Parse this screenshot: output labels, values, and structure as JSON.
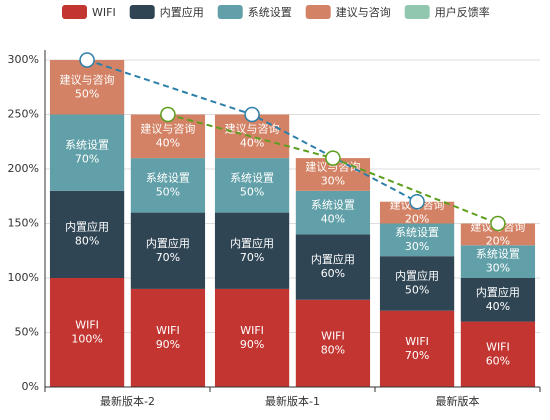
{
  "chart_data": {
    "type": "stacked-bar-line",
    "categories": [
      "最新版本-2",
      "最新版本-1",
      "最新版本"
    ],
    "ylim": [
      0,
      300
    ],
    "yticks": [
      {
        "value": 0,
        "label": "0%"
      },
      {
        "value": 50,
        "label": "50%"
      },
      {
        "value": 100,
        "label": "100%"
      },
      {
        "value": 150,
        "label": "150%"
      },
      {
        "value": 200,
        "label": "200%"
      },
      {
        "value": 250,
        "label": "250%"
      },
      {
        "value": 300,
        "label": "300%"
      }
    ],
    "grid": true,
    "legend_position": "top",
    "series": [
      {
        "name": "WIFI",
        "color": "#c23531",
        "values": [
          [
            100,
            90
          ],
          [
            90,
            80
          ],
          [
            70,
            60
          ]
        ],
        "value_labels": [
          [
            "100%",
            "90%"
          ],
          [
            "90%",
            "80%"
          ],
          [
            "70%",
            "60%"
          ]
        ]
      },
      {
        "name": "内置应用",
        "color": "#2f4554",
        "values": [
          [
            80,
            70
          ],
          [
            70,
            60
          ],
          [
            50,
            40
          ]
        ],
        "value_labels": [
          [
            "80%",
            "70%"
          ],
          [
            "70%",
            "60%"
          ],
          [
            "50%",
            "40%"
          ]
        ]
      },
      {
        "name": "系统设置",
        "color": "#61a0a8",
        "values": [
          [
            70,
            50
          ],
          [
            50,
            40
          ],
          [
            30,
            30
          ]
        ],
        "value_labels": [
          [
            "70%",
            "50%"
          ],
          [
            "50%",
            "40%"
          ],
          [
            "30%",
            "30%"
          ]
        ]
      },
      {
        "name": "建议与咨询",
        "color": "#d48265",
        "values": [
          [
            50,
            40
          ],
          [
            40,
            30
          ],
          [
            20,
            20
          ]
        ],
        "value_labels": [
          [
            "50%",
            "40%"
          ],
          [
            "40%",
            "30%"
          ],
          [
            "20%",
            "20%"
          ]
        ]
      },
      {
        "name": "用户反馈率",
        "color": "#91c7ae",
        "type": "line",
        "lines": [
          {
            "color": "#2c7fa8",
            "values": [
              300,
              250,
              170
            ]
          },
          {
            "color": "#5e9e1e",
            "values": [
              250,
              210,
              150
            ]
          }
        ]
      }
    ]
  }
}
